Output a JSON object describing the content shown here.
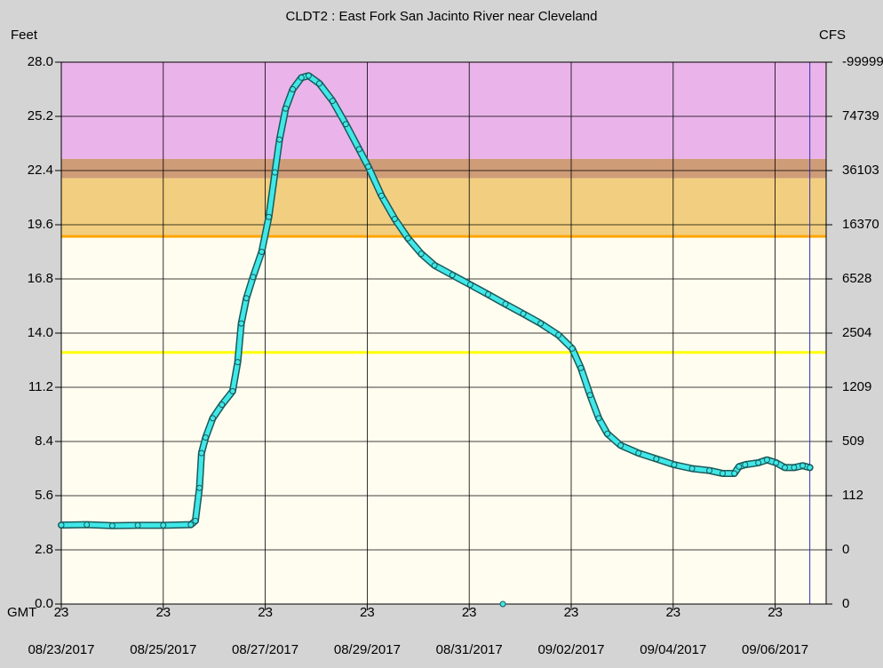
{
  "chart_data": {
    "type": "hydrograph",
    "title": "CLDT2  :  East Fork San Jacinto River near Cleveland",
    "y_label": "Feet",
    "y2_label": "CFS",
    "time_zone": "GMT",
    "xlim": [
      0,
      15
    ],
    "xticks": [
      {
        "value": 0,
        "label": "23"
      },
      {
        "value": 2,
        "label": "23"
      },
      {
        "value": 4,
        "label": "23"
      },
      {
        "value": 6,
        "label": "23"
      },
      {
        "value": 8,
        "label": "23"
      },
      {
        "value": 10,
        "label": "23"
      },
      {
        "value": 12,
        "label": "23"
      },
      {
        "value": 14,
        "label": "23"
      }
    ],
    "xtick_dates": [
      "08/23/2017",
      "08/25/2017",
      "08/27/2017",
      "08/29/2017",
      "08/31/2017",
      "09/02/2017",
      "09/04/2017",
      "09/06/2017"
    ],
    "ylim": [
      0,
      28
    ],
    "yticks": [
      {
        "value": 0,
        "label": "0.0"
      },
      2.8,
      5.6,
      8.4,
      11.2,
      {
        "value": 14,
        "label": "14.0"
      },
      16.8,
      19.6,
      22.4,
      25.2,
      {
        "value": 28,
        "label": "28.0"
      }
    ],
    "cfs_labels": [
      "0",
      "0",
      "112",
      "509",
      "1209",
      "2504",
      "6528",
      "16370",
      "36103",
      "74739",
      "-99999"
    ],
    "grid": true,
    "bands": [
      {
        "from": 23,
        "to": 28,
        "color": "#eab4ea"
      },
      {
        "from": 22,
        "to": 23,
        "color": "#cf9c78"
      },
      {
        "from": 19,
        "to": 22,
        "color": "#f2cf80"
      }
    ],
    "threshold_lines": [
      {
        "value": 19,
        "color": "#ffa500"
      },
      {
        "value": 13,
        "color": "#ffff00"
      }
    ],
    "current_time": 14.68,
    "series": [
      {
        "mode": "line",
        "color": "#40e8e8",
        "x": [
          0,
          0.5,
          1,
          1.5,
          2,
          2.54,
          2.63,
          2.71,
          2.75,
          2.83,
          2.97,
          3.15,
          3.36,
          3.46,
          3.53,
          3.63,
          3.76,
          3.93,
          4.07,
          4.19,
          4.28,
          4.4,
          4.54,
          4.71,
          4.85,
          5.06,
          5.32,
          5.58,
          5.84,
          6.02,
          6.28,
          6.54,
          6.8,
          7.06,
          7.32,
          7.67,
          8.02,
          8.37,
          8.71,
          9.06,
          9.4,
          9.75,
          10.02,
          10.19,
          10.37,
          10.54,
          10.71,
          10.97,
          11.32,
          11.67,
          12.02,
          12.37,
          12.71,
          12.97,
          13.2,
          13.29,
          13.41,
          13.67,
          13.84,
          14.02,
          14.19,
          14.37,
          14.54,
          14.68
        ],
        "values": [
          4.08,
          4.1,
          4.05,
          4.07,
          4.07,
          4.1,
          4.3,
          6.0,
          7.8,
          8.6,
          9.6,
          10.3,
          11.0,
          12.5,
          14.5,
          15.8,
          16.9,
          18.2,
          20.0,
          22.3,
          24.0,
          25.6,
          26.6,
          27.2,
          27.3,
          26.9,
          26.0,
          24.8,
          23.5,
          22.6,
          21.1,
          19.9,
          18.9,
          18.1,
          17.5,
          17.0,
          16.5,
          16.0,
          15.5,
          15.0,
          14.5,
          13.9,
          13.2,
          12.2,
          10.8,
          9.6,
          8.8,
          8.2,
          7.8,
          7.5,
          7.2,
          7.0,
          6.9,
          6.75,
          6.75,
          7.1,
          7.2,
          7.3,
          7.45,
          7.3,
          7.05,
          7.05,
          7.15,
          7.05
        ]
      },
      {
        "mode": "markers",
        "color": "#40e8e8",
        "x": [
          8.66
        ],
        "values": [
          0
        ]
      }
    ]
  }
}
